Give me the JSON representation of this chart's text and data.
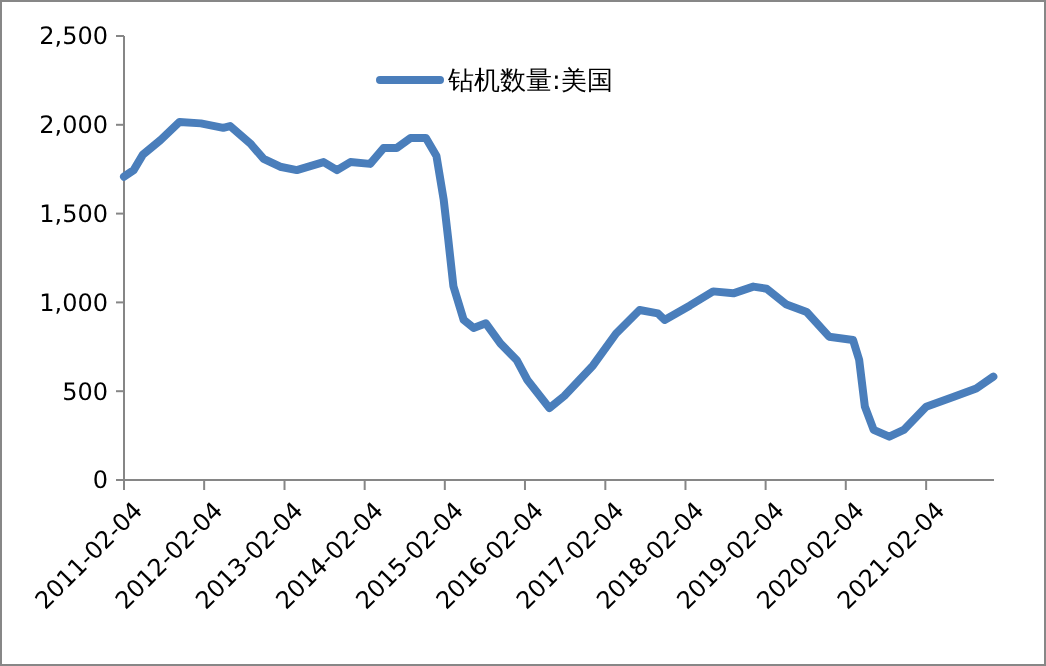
{
  "chart_data": {
    "type": "line",
    "legend": "top",
    "grid": false,
    "marker": "none",
    "line_style": "solid",
    "xlim": [
      "2011-02-04",
      "2021-12-10"
    ],
    "xticks": [
      "2011-02-04",
      "2012-02-04",
      "2013-02-04",
      "2014-02-04",
      "2015-02-04",
      "2016-02-04",
      "2017-02-04",
      "2018-02-04",
      "2019-02-04",
      "2020-02-04",
      "2021-02-04"
    ],
    "ylim": [
      0,
      2500
    ],
    "yticks": [
      0,
      500,
      {
        "value": 1000,
        "label": "1,000"
      },
      {
        "value": 1500,
        "label": "1,500"
      },
      {
        "value": 2000,
        "label": "2,000"
      },
      {
        "value": 2500,
        "label": "2,500"
      }
    ],
    "x": [
      "2011-02-04",
      "2011-03-20",
      "2011-05-01",
      "2011-07-20",
      "2011-10-15",
      "2012-01-20",
      "2012-05-01",
      "2012-06-01",
      "2012-09-01",
      "2012-11-01",
      "2013-01-15",
      "2013-04-01",
      "2013-08-01",
      "2013-10-01",
      "2013-12-01",
      "2014-03-01",
      "2014-05-01",
      "2014-06-30",
      "2014-09-01",
      "2014-11-10",
      "2014-12-28",
      "2015-01-30",
      "2015-02-20",
      "2015-03-15",
      "2015-05-01",
      "2015-06-15",
      "2015-08-10",
      "2015-10-15",
      "2015-12-28",
      "2016-02-15",
      "2016-05-25",
      "2016-08-01",
      "2016-12-10",
      "2017-03-25",
      "2017-07-10",
      "2017-10-01",
      "2017-11-01",
      "2018-02-25",
      "2018-06-10",
      "2018-09-10",
      "2018-12-10",
      "2019-02-08",
      "2019-05-10",
      "2019-08-10",
      "2019-11-20",
      "2020-03-08",
      "2020-04-05",
      "2020-05-01",
      "2020-06-10",
      "2020-08-20",
      "2020-10-25",
      "2021-02-04",
      "2021-06-10",
      "2021-09-20",
      "2021-12-07"
    ],
    "series": [
      {
        "name": "钻机数量:美国",
        "color": "#4a7ebb",
        "values": [
          1708,
          1745,
          1832,
          1914,
          2016,
          2008,
          1983,
          1993,
          1895,
          1808,
          1764,
          1745,
          1790,
          1745,
          1790,
          1780,
          1869,
          1869,
          1926,
          1926,
          1824,
          1577,
          1351,
          1092,
          901,
          856,
          882,
          769,
          676,
          563,
          405,
          473,
          645,
          825,
          957,
          938,
          901,
          983,
          1062,
          1051,
          1089,
          1077,
          988,
          946,
          807,
          788,
          676,
          413,
          282,
          244,
          282,
          413,
          469,
          515,
          582
        ]
      }
    ]
  }
}
